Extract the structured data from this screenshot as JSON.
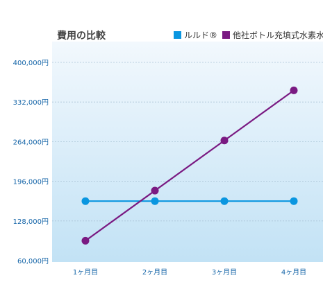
{
  "chart_data": {
    "type": "line",
    "title": "費用の比較",
    "xlabel": "",
    "ylabel": "",
    "categories": [
      "1ヶ月目",
      "2ヶ月目",
      "3ヶ月目",
      "4ヶ月目"
    ],
    "y_ticks": [
      "400,000円",
      "332,000円",
      "264,000円",
      "196,000円",
      "128,000円",
      "60,000円"
    ],
    "ylim": [
      60000,
      400000
    ],
    "grid": true,
    "legend_position": "top-right",
    "series": [
      {
        "name": "ルルド®",
        "color": "#0a96e0",
        "values": [
          162000,
          162000,
          162000,
          162000
        ]
      },
      {
        "name": "他社ボトル充填式水素水",
        "color": "#7a1a82",
        "values": [
          94000,
          180000,
          266000,
          352000
        ]
      }
    ],
    "colors": {
      "plot_bg_top": "#f2f8fd",
      "plot_bg_bottom": "#c2e2f5",
      "axis_text": "#1565a8",
      "title_text": "#444444",
      "grid": "#a9c3d6"
    }
  }
}
